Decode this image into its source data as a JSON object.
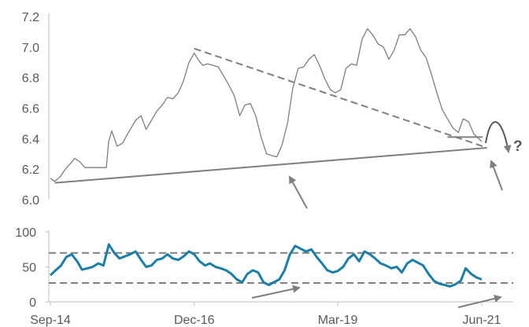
{
  "chart_data": [
    {
      "type": "line",
      "panel": "price",
      "ylim": [
        6.0,
        7.2
      ],
      "yticks": [
        "6.0",
        "6.2",
        "6.4",
        "6.6",
        "6.8",
        "7.0",
        "7.2"
      ],
      "grid": false,
      "series": [
        {
          "color": "#7f7f7f",
          "points": [
            [
              "2014-09-15",
              6.14
            ],
            [
              "2014-10-10",
              6.12
            ],
            [
              "2014-11-10",
              6.15
            ],
            [
              "2014-12-10",
              6.2
            ],
            [
              "2015-01-10",
              6.24
            ],
            [
              "2015-02-01",
              6.27
            ],
            [
              "2015-03-01",
              6.25
            ],
            [
              "2015-04-01",
              6.21
            ],
            [
              "2015-06-01",
              6.21
            ],
            [
              "2015-08-01",
              6.21
            ],
            [
              "2015-08-14",
              6.38
            ],
            [
              "2015-09-01",
              6.45
            ],
            [
              "2015-10-01",
              6.35
            ],
            [
              "2015-11-01",
              6.37
            ],
            [
              "2015-12-10",
              6.45
            ],
            [
              "2016-01-15",
              6.52
            ],
            [
              "2016-02-15",
              6.55
            ],
            [
              "2016-03-15",
              6.46
            ],
            [
              "2016-04-15",
              6.52
            ],
            [
              "2016-05-15",
              6.58
            ],
            [
              "2016-06-15",
              6.62
            ],
            [
              "2016-07-15",
              6.67
            ],
            [
              "2016-08-15",
              6.66
            ],
            [
              "2016-09-15",
              6.7
            ],
            [
              "2016-10-15",
              6.78
            ],
            [
              "2016-11-15",
              6.9
            ],
            [
              "2016-12-15",
              6.96
            ],
            [
              "2017-01-05",
              6.92
            ],
            [
              "2017-02-01",
              6.88
            ],
            [
              "2017-03-01",
              6.89
            ],
            [
              "2017-04-01",
              6.88
            ],
            [
              "2017-05-01",
              6.87
            ],
            [
              "2017-06-01",
              6.81
            ],
            [
              "2017-07-01",
              6.75
            ],
            [
              "2017-08-01",
              6.68
            ],
            [
              "2017-09-01",
              6.55
            ],
            [
              "2017-10-01",
              6.62
            ],
            [
              "2017-11-01",
              6.63
            ],
            [
              "2017-12-01",
              6.55
            ],
            [
              "2018-01-01",
              6.41
            ],
            [
              "2018-02-01",
              6.3
            ],
            [
              "2018-03-01",
              6.29
            ],
            [
              "2018-04-01",
              6.28
            ],
            [
              "2018-05-01",
              6.36
            ],
            [
              "2018-06-01",
              6.5
            ],
            [
              "2018-07-01",
              6.73
            ],
            [
              "2018-08-01",
              6.86
            ],
            [
              "2018-09-01",
              6.87
            ],
            [
              "2018-10-01",
              6.92
            ],
            [
              "2018-11-01",
              6.95
            ],
            [
              "2018-12-01",
              6.88
            ],
            [
              "2019-01-01",
              6.79
            ],
            [
              "2019-02-01",
              6.72
            ],
            [
              "2019-03-01",
              6.7
            ],
            [
              "2019-04-01",
              6.72
            ],
            [
              "2019-05-01",
              6.86
            ],
            [
              "2019-06-01",
              6.89
            ],
            [
              "2019-07-01",
              6.88
            ],
            [
              "2019-08-01",
              7.05
            ],
            [
              "2019-09-01",
              7.12
            ],
            [
              "2019-10-01",
              7.08
            ],
            [
              "2019-11-01",
              7.02
            ],
            [
              "2019-12-01",
              7.0
            ],
            [
              "2020-01-01",
              6.92
            ],
            [
              "2020-02-01",
              6.98
            ],
            [
              "2020-03-01",
              7.08
            ],
            [
              "2020-04-01",
              7.08
            ],
            [
              "2020-05-01",
              7.12
            ],
            [
              "2020-06-01",
              7.07
            ],
            [
              "2020-07-01",
              6.98
            ],
            [
              "2020-08-01",
              6.93
            ],
            [
              "2020-09-01",
              6.82
            ],
            [
              "2020-10-01",
              6.7
            ],
            [
              "2020-11-01",
              6.59
            ],
            [
              "2020-12-01",
              6.53
            ],
            [
              "2021-01-01",
              6.47
            ],
            [
              "2021-02-01",
              6.44
            ],
            [
              "2021-03-01",
              6.53
            ],
            [
              "2021-04-01",
              6.51
            ],
            [
              "2021-05-01",
              6.43
            ],
            [
              "2021-06-15",
              6.38
            ]
          ]
        }
      ],
      "annotations": [
        {
          "kind": "dashed-trendline",
          "color": "#7f7f7f",
          "from": [
            "2016-12-15",
            6.99
          ],
          "to": [
            "2021-06-20",
            6.35
          ]
        },
        {
          "kind": "solid-trendline",
          "color": "#7f7f7f",
          "from": [
            "2014-10-10",
            6.11
          ],
          "to": [
            "2021-07-15",
            6.34
          ]
        },
        {
          "kind": "solid-segment",
          "color": "#7f7f7f",
          "from": [
            "2020-12-01",
            6.41
          ],
          "to": [
            "2021-06-20",
            6.41
          ]
        },
        {
          "kind": "label",
          "text": "?"
        }
      ]
    },
    {
      "type": "line",
      "panel": "oscillator",
      "ylim": [
        0,
        100
      ],
      "yticks": [
        "0",
        "50",
        "100"
      ],
      "xlabels": [
        "Sep-14",
        "Dec-16",
        "Mar-19",
        "Jun-21"
      ],
      "xtick_dates": [
        "2014-09-15",
        "2016-12-15",
        "2019-03-15",
        "2021-06-15"
      ],
      "grid": false,
      "reference_lines": [
        70,
        27
      ],
      "series": [
        {
          "color": "#1a7fa8",
          "points": [
            [
              "2014-09-15",
              38
            ],
            [
              "2014-10-15",
              45
            ],
            [
              "2014-11-15",
              52
            ],
            [
              "2014-12-15",
              64
            ],
            [
              "2015-01-15",
              68
            ],
            [
              "2015-02-15",
              58
            ],
            [
              "2015-03-15",
              46
            ],
            [
              "2015-04-15",
              48
            ],
            [
              "2015-05-15",
              50
            ],
            [
              "2015-06-15",
              55
            ],
            [
              "2015-07-15",
              52
            ],
            [
              "2015-08-15",
              82
            ],
            [
              "2015-09-15",
              70
            ],
            [
              "2015-10-15",
              62
            ],
            [
              "2015-11-15",
              65
            ],
            [
              "2015-12-15",
              68
            ],
            [
              "2016-01-15",
              72
            ],
            [
              "2016-02-15",
              60
            ],
            [
              "2016-03-15",
              50
            ],
            [
              "2016-04-15",
              52
            ],
            [
              "2016-05-15",
              60
            ],
            [
              "2016-06-15",
              62
            ],
            [
              "2016-07-15",
              68
            ],
            [
              "2016-08-15",
              62
            ],
            [
              "2016-09-15",
              60
            ],
            [
              "2016-10-15",
              65
            ],
            [
              "2016-11-15",
              72
            ],
            [
              "2016-12-15",
              68
            ],
            [
              "2017-01-15",
              58
            ],
            [
              "2017-02-15",
              52
            ],
            [
              "2017-03-15",
              55
            ],
            [
              "2017-04-15",
              50
            ],
            [
              "2017-05-15",
              48
            ],
            [
              "2017-06-15",
              45
            ],
            [
              "2017-07-15",
              40
            ],
            [
              "2017-08-15",
              32
            ],
            [
              "2017-09-15",
              28
            ],
            [
              "2017-10-15",
              40
            ],
            [
              "2017-11-15",
              45
            ],
            [
              "2017-12-15",
              42
            ],
            [
              "2018-01-15",
              28
            ],
            [
              "2018-02-15",
              24
            ],
            [
              "2018-03-15",
              28
            ],
            [
              "2018-04-15",
              32
            ],
            [
              "2018-05-15",
              45
            ],
            [
              "2018-06-15",
              68
            ],
            [
              "2018-07-15",
              80
            ],
            [
              "2018-08-15",
              76
            ],
            [
              "2018-09-15",
              72
            ],
            [
              "2018-10-15",
              75
            ],
            [
              "2018-11-15",
              64
            ],
            [
              "2018-12-15",
              55
            ],
            [
              "2019-01-15",
              45
            ],
            [
              "2019-02-15",
              42
            ],
            [
              "2019-03-15",
              44
            ],
            [
              "2019-04-15",
              50
            ],
            [
              "2019-05-15",
              62
            ],
            [
              "2019-06-15",
              68
            ],
            [
              "2019-07-15",
              58
            ],
            [
              "2019-08-15",
              72
            ],
            [
              "2019-09-15",
              68
            ],
            [
              "2019-10-15",
              62
            ],
            [
              "2019-11-15",
              55
            ],
            [
              "2019-12-15",
              52
            ],
            [
              "2020-01-15",
              48
            ],
            [
              "2020-02-15",
              50
            ],
            [
              "2020-03-15",
              42
            ],
            [
              "2020-04-15",
              55
            ],
            [
              "2020-05-15",
              60
            ],
            [
              "2020-06-15",
              56
            ],
            [
              "2020-07-15",
              52
            ],
            [
              "2020-08-15",
              40
            ],
            [
              "2020-09-15",
              30
            ],
            [
              "2020-10-15",
              26
            ],
            [
              "2020-11-15",
              24
            ],
            [
              "2020-12-15",
              22
            ],
            [
              "2021-01-15",
              25
            ],
            [
              "2021-02-15",
              30
            ],
            [
              "2021-03-15",
              48
            ],
            [
              "2021-04-15",
              40
            ],
            [
              "2021-05-15",
              35
            ],
            [
              "2021-06-15",
              32
            ]
          ]
        }
      ]
    }
  ]
}
